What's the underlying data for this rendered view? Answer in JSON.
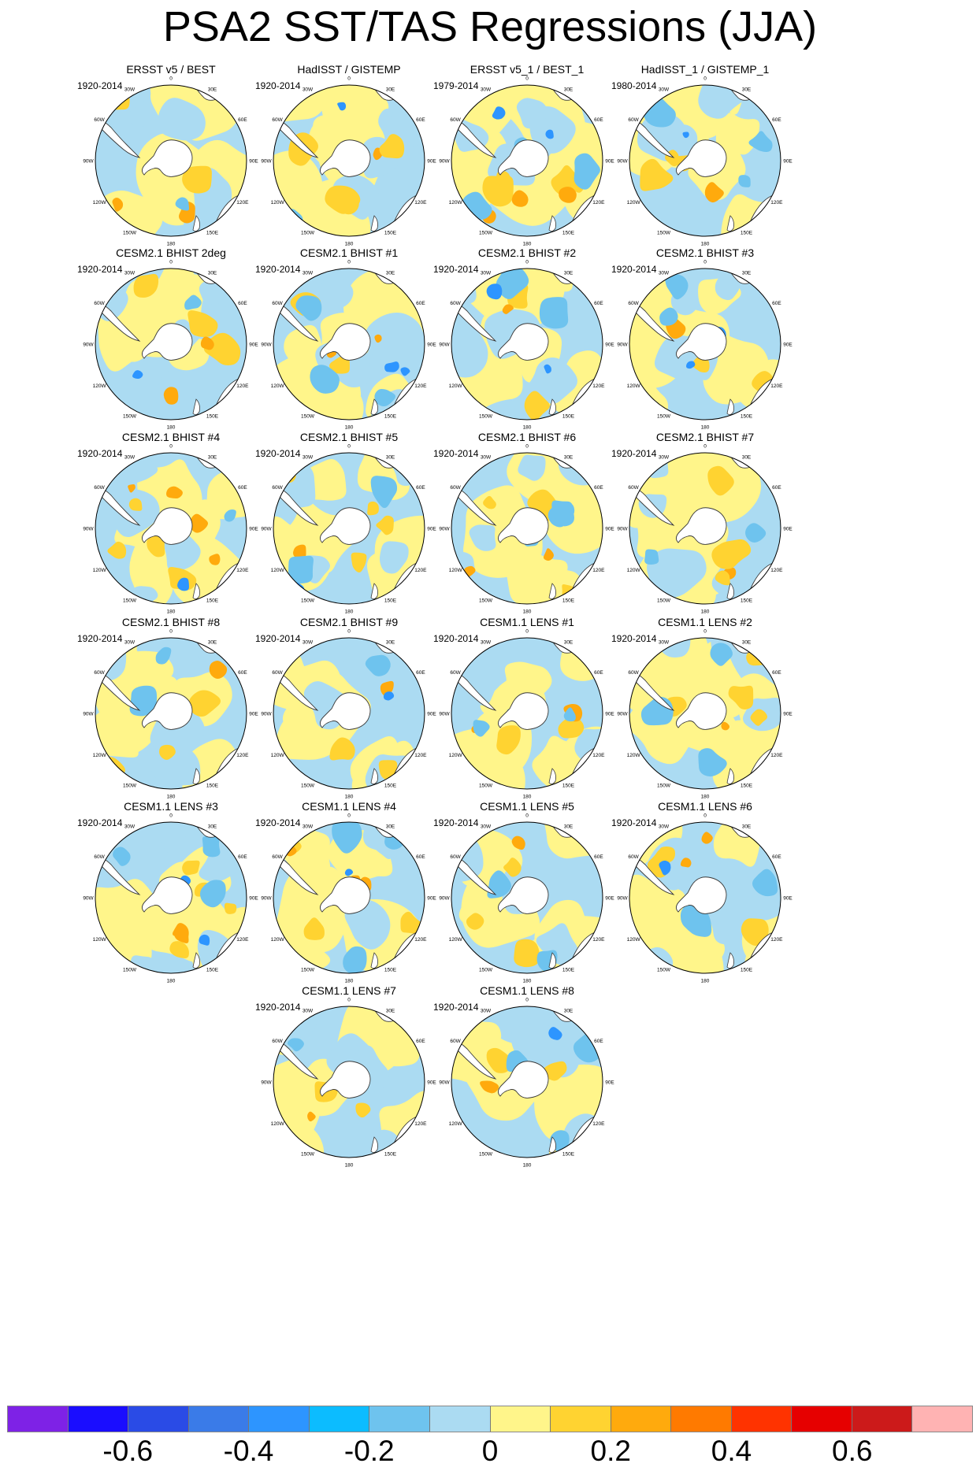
{
  "title": "PSA2 SST/TAS Regressions (JJA)",
  "longitude_labels": [
    "0",
    "30E",
    "60E",
    "90E",
    "120E",
    "150E",
    "180",
    "150W",
    "120W",
    "90W",
    "60W",
    "30W"
  ],
  "panels": [
    {
      "title": "ERSST v5 / BEST",
      "period": "1920-2014"
    },
    {
      "title": "HadISST / GISTEMP",
      "period": "1920-2014"
    },
    {
      "title": "ERSST v5_1 / BEST_1",
      "period": "1979-2014"
    },
    {
      "title": "HadISST_1 / GISTEMP_1",
      "period": "1980-2014"
    },
    {
      "title": "CESM2.1 BHIST 2deg",
      "period": "1920-2014"
    },
    {
      "title": "CESM2.1 BHIST #1",
      "period": "1920-2014"
    },
    {
      "title": "CESM2.1 BHIST #2",
      "period": "1920-2014"
    },
    {
      "title": "CESM2.1 BHIST #3",
      "period": "1920-2014"
    },
    {
      "title": "CESM2.1 BHIST #4",
      "period": "1920-2014"
    },
    {
      "title": "CESM2.1 BHIST #5",
      "period": "1920-2014"
    },
    {
      "title": "CESM2.1 BHIST #6",
      "period": "1920-2014"
    },
    {
      "title": "CESM2.1 BHIST #7",
      "period": "1920-2014"
    },
    {
      "title": "CESM2.1 BHIST #8",
      "period": "1920-2014"
    },
    {
      "title": "CESM2.1 BHIST #9",
      "period": "1920-2014"
    },
    {
      "title": "CESM1.1 LENS #1",
      "period": "1920-2014"
    },
    {
      "title": "CESM1.1 LENS #2",
      "period": "1920-2014"
    },
    {
      "title": "CESM1.1 LENS #3",
      "period": "1920-2014"
    },
    {
      "title": "CESM1.1 LENS #4",
      "period": "1920-2014"
    },
    {
      "title": "CESM1.1 LENS #5",
      "period": "1920-2014"
    },
    {
      "title": "CESM1.1 LENS #6",
      "period": "1920-2014"
    },
    {
      "title": "CESM1.1 LENS #7",
      "period": "1920-2014"
    },
    {
      "title": "CESM1.1 LENS #8",
      "period": "1920-2014"
    }
  ],
  "colorbar": {
    "colors": [
      "#7e22e6",
      "#1a0dff",
      "#2a4be6",
      "#3a7be8",
      "#2d95ff",
      "#0cbcff",
      "#6ec3ee",
      "#abdbf2",
      "#fff58a",
      "#ffd331",
      "#ffaa0d",
      "#ff7a00",
      "#ff3300",
      "#e60000",
      "#cc1a1a",
      "#ffb3b3"
    ],
    "labels": [
      "-0.6",
      "-0.4",
      "-0.2",
      "0",
      "0.2",
      "0.4",
      "0.6"
    ]
  }
}
